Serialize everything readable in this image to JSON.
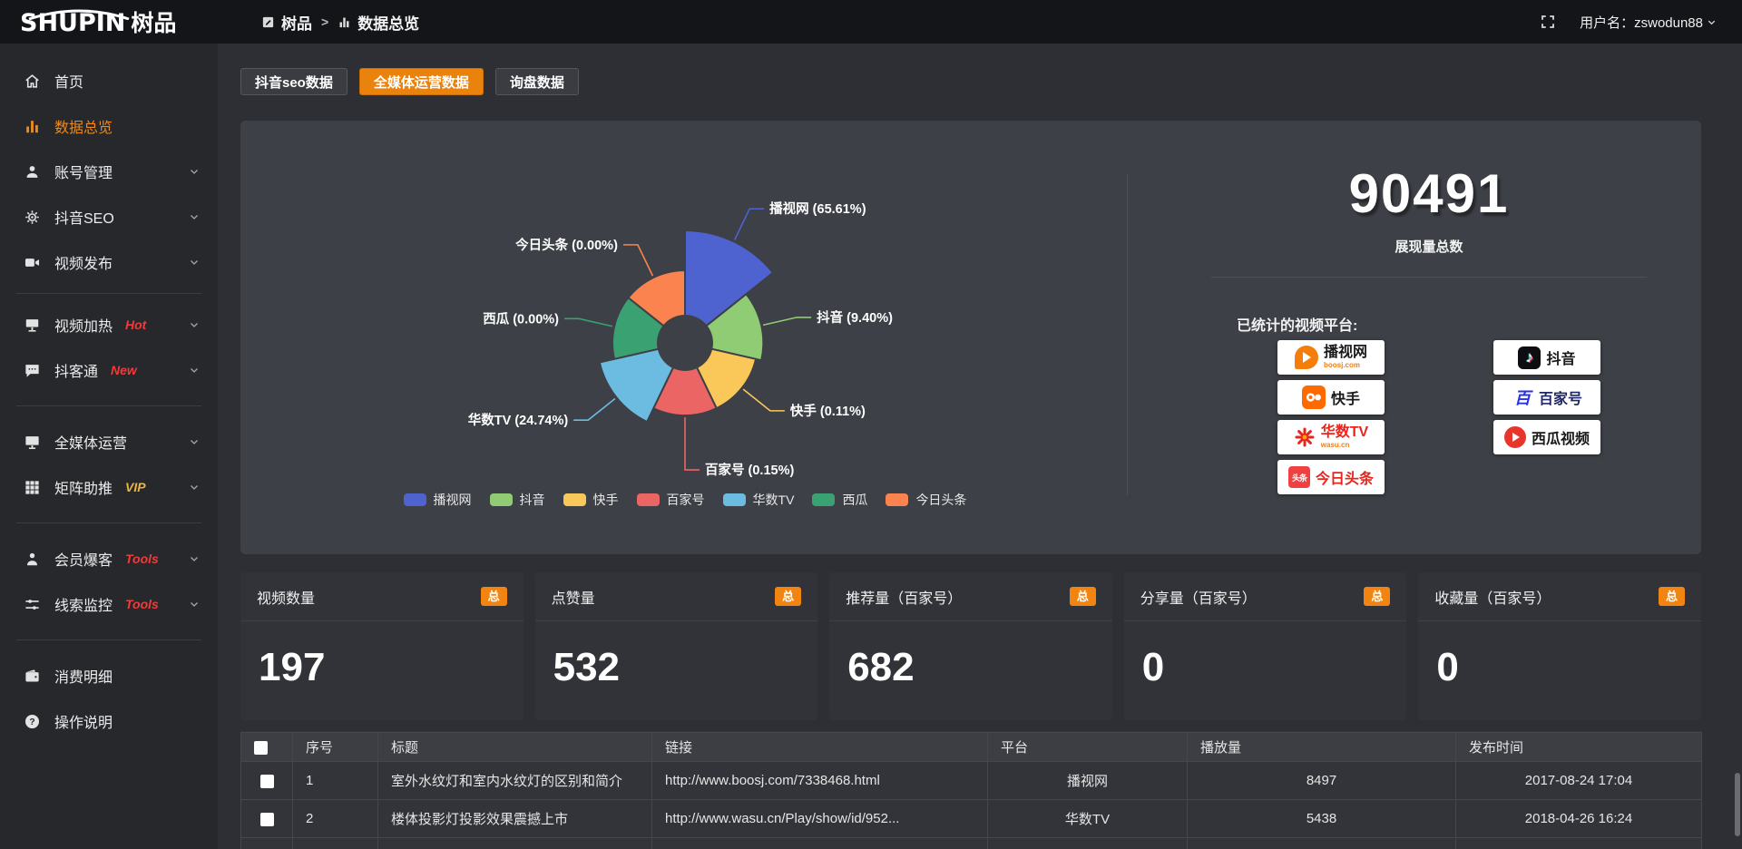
{
  "header": {
    "logo_en": "SHUPIN",
    "logo_cn": "树品",
    "breadcrumb": [
      {
        "label": "树品",
        "icon": "app-icon"
      },
      {
        "label": "数据总览",
        "icon": "bar-chart-icon"
      }
    ],
    "breadcrumb_separator": ">",
    "username": "用户名：zswodun88"
  },
  "sidebar": {
    "items": [
      {
        "label": "首页",
        "icon": "home"
      },
      {
        "label": "数据总览",
        "icon": "bar-chart",
        "active": true
      },
      {
        "label": "账号管理",
        "icon": "user",
        "expandable": true
      },
      {
        "label": "抖音SEO",
        "icon": "gear",
        "expandable": true
      },
      {
        "label": "视频发布",
        "icon": "video-camera",
        "expandable": true
      },
      {
        "label": "视频加热",
        "icon": "billboard",
        "badge": "Hot",
        "expandable": true
      },
      {
        "label": "抖客通",
        "icon": "chat-bubble",
        "badge": "New",
        "expandable": true
      },
      {
        "label": "全媒体运营",
        "icon": "monitor",
        "expandable": true
      },
      {
        "label": "矩阵助推",
        "icon": "grid",
        "badge": "VIP",
        "expandable": true
      },
      {
        "label": "会员爆客",
        "icon": "person",
        "badge": "Tools",
        "expandable": true
      },
      {
        "label": "线索监控",
        "icon": "sliders",
        "badge": "Tools",
        "expandable": true
      },
      {
        "label": "消费明细",
        "icon": "wallet"
      },
      {
        "label": "操作说明",
        "icon": "help-circle"
      }
    ]
  },
  "tabs": [
    {
      "label": "抖音seo数据",
      "active": false
    },
    {
      "label": "全媒体运营数据",
      "active": true
    },
    {
      "label": "询盘数据",
      "active": false
    }
  ],
  "chart_data": {
    "type": "pie",
    "subtype": "nightingale-rose",
    "legend_position": "bottom",
    "label_format": "{name} ({percent}%)",
    "items": [
      {
        "name": "播视网",
        "percent": "65.61",
        "color": "#4e63cf"
      },
      {
        "name": "抖音",
        "percent": "9.40",
        "color": "#90cc74"
      },
      {
        "name": "快手",
        "percent": "0.11",
        "color": "#f9c858"
      },
      {
        "name": "百家号",
        "percent": "0.15",
        "color": "#eb6565"
      },
      {
        "name": "华数TV",
        "percent": "24.74",
        "color": "#6cbbe0"
      },
      {
        "name": "西瓜",
        "percent": "0.00",
        "color": "#3aa272"
      },
      {
        "name": "今日头条",
        "percent": "0.00",
        "color": "#fb8350"
      }
    ]
  },
  "summary": {
    "total_value": "90491",
    "total_label": "展现量总数",
    "platforms_title": "已统计的视频平台:",
    "platform_badges": [
      {
        "name": "播视网",
        "sub": "boosj.com",
        "icon": "boosj-icon"
      },
      {
        "name": "抖音",
        "sub": "",
        "icon": "douyin-icon"
      },
      {
        "name": "快手",
        "sub": "",
        "icon": "kuaishou-icon"
      },
      {
        "name": "百家号",
        "sub": "",
        "icon": "baijiahao-icon"
      },
      {
        "name": "华数TV",
        "sub": "wasu.cn",
        "icon": "wasu-icon"
      },
      {
        "name": "西瓜视频",
        "sub": "",
        "icon": "xigua-icon"
      },
      {
        "name": "今日头条",
        "sub": "",
        "icon": "toutiao-icon"
      }
    ]
  },
  "stats_cards": [
    {
      "label": "视频数量",
      "badge": "总",
      "value": "197"
    },
    {
      "label": "点赞量",
      "badge": "总",
      "value": "532"
    },
    {
      "label": "推荐量（百家号）",
      "badge": "总",
      "value": "682"
    },
    {
      "label": "分享量（百家号）",
      "badge": "总",
      "value": "0"
    },
    {
      "label": "收藏量（百家号）",
      "badge": "总",
      "value": "0"
    }
  ],
  "table": {
    "headers": [
      "序号",
      "标题",
      "链接",
      "平台",
      "播放量",
      "发布时间"
    ],
    "rows": [
      {
        "index": "1",
        "title": "室外水纹灯和室内水纹灯的区别和简介",
        "link": "http://www.boosj.com/7338468.html",
        "platform": "播视网",
        "views": "8497",
        "time": "2017-08-24 17:04"
      },
      {
        "index": "2",
        "title": "楼体投影灯投影效果震撼上市",
        "link": "http://www.wasu.cn/Play/show/id/952...",
        "platform": "华数TV",
        "views": "5438",
        "time": "2018-04-26 16:24"
      }
    ]
  }
}
